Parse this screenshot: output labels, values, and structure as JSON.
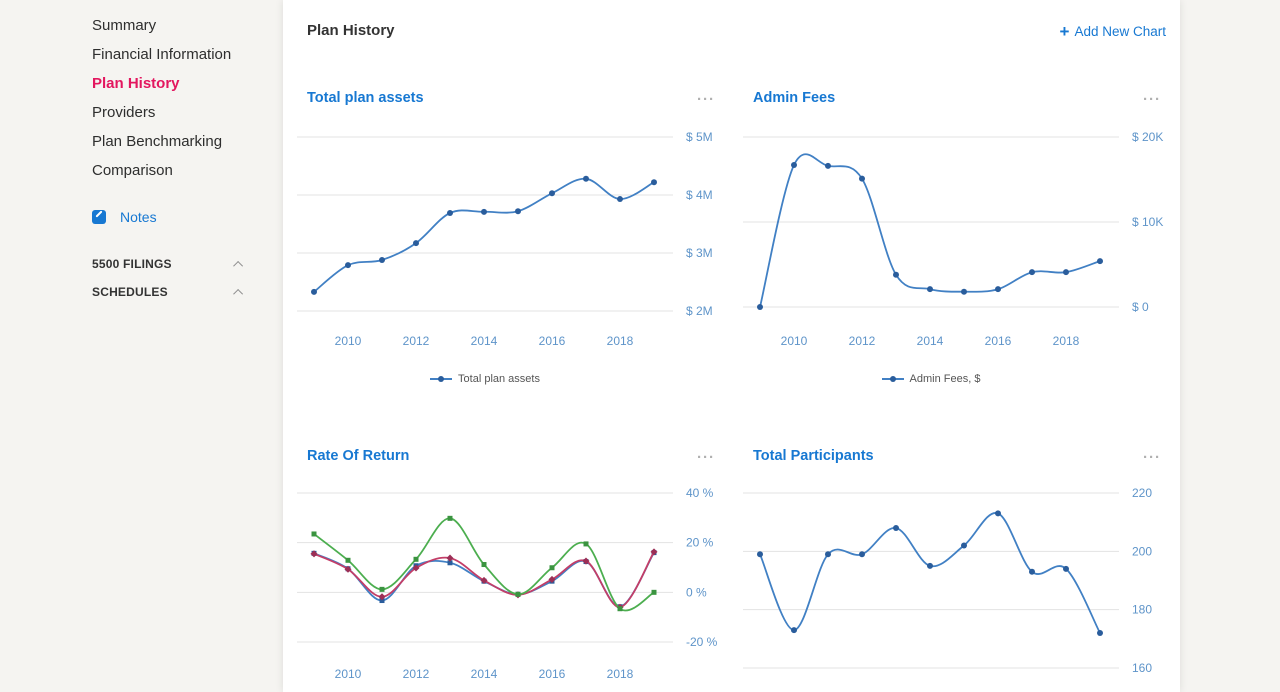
{
  "sidebar": {
    "items": [
      {
        "label": "Summary",
        "active": false
      },
      {
        "label": "Financial Information",
        "active": false
      },
      {
        "label": "Plan History",
        "active": true
      },
      {
        "label": "Providers",
        "active": false
      },
      {
        "label": "Plan Benchmarking",
        "active": false
      },
      {
        "label": "Comparison",
        "active": false
      }
    ],
    "notes_label": "Notes",
    "sections": [
      {
        "label": "5500 FILINGS",
        "chevron": "up"
      },
      {
        "label": "SCHEDULES",
        "chevron": "up"
      }
    ]
  },
  "header": {
    "title": "Plan History",
    "add_chart_label": "Add New Chart"
  },
  "colors": {
    "accent_blue": "#1778d2",
    "active_item_pink": "#e3175f",
    "axis_label_blue": "#5e94c9",
    "gridline": "#e3e3e3",
    "sidebar_bg": "#f5f4f1",
    "line_blue": "#4180c4",
    "marker_blue": "#2a5d9c",
    "line_green": "#4cae4f",
    "marker_green": "#3b9440",
    "line_pink": "#c33e68",
    "marker_pink": "#9c2f56"
  },
  "chart_data": [
    {
      "type": "line",
      "title": "Total plan assets",
      "x": [
        2009,
        2010,
        2011,
        2012,
        2013,
        2014,
        2015,
        2016,
        2017,
        2018,
        2019
      ],
      "xticks": [
        "2010",
        "2012",
        "2014",
        "2016",
        "2018"
      ],
      "xticks_visible": true,
      "yticks": [
        {
          "label": "$ 5M",
          "value": 5000000
        },
        {
          "label": "$ 4M",
          "value": 4000000
        },
        {
          "label": "$ 3M",
          "value": 3000000
        },
        {
          "label": "$ 2M",
          "value": 2000000
        }
      ],
      "grid": true,
      "series": [
        {
          "color": "#4180c4",
          "marker_color": "#2a5d9c",
          "marker": "circle",
          "values": [
            2330000,
            2790000,
            2880000,
            3170000,
            3690000,
            3710000,
            3720000,
            4030000,
            4280000,
            3930000,
            4220000
          ]
        }
      ],
      "legend": {
        "visible": true,
        "position": "bottom",
        "label": "Total plan assets"
      }
    },
    {
      "type": "line",
      "title": "Admin Fees",
      "x": [
        2009,
        2010,
        2011,
        2012,
        2013,
        2014,
        2015,
        2016,
        2017,
        2018,
        2019
      ],
      "xticks": [
        "2010",
        "2012",
        "2014",
        "2016",
        "2018"
      ],
      "xticks_visible": true,
      "yticks": [
        {
          "label": "$ 20K",
          "value": 20000
        },
        {
          "label": "$ 10K",
          "value": 10000
        },
        {
          "label": "$ 0",
          "value": 0
        }
      ],
      "grid": true,
      "series": [
        {
          "color": "#4180c4",
          "marker_color": "#2a5d9c",
          "marker": "circle",
          "values": [
            0,
            16700,
            16600,
            15100,
            3800,
            2100,
            1800,
            2100,
            4100,
            4100,
            5400
          ]
        }
      ],
      "legend": {
        "visible": true,
        "position": "bottom",
        "label": "Admin Fees, $"
      }
    },
    {
      "type": "line",
      "title": "Rate Of Return",
      "x": [
        2009,
        2010,
        2011,
        2012,
        2013,
        2014,
        2015,
        2016,
        2017,
        2018,
        2019
      ],
      "xticks": [
        "2010",
        "2012",
        "2014",
        "2016",
        "2018"
      ],
      "xticks_visible": true,
      "yticks": [
        {
          "label": "40 %",
          "value": 40
        },
        {
          "label": "20 %",
          "value": 20
        },
        {
          "label": "0 %",
          "value": 0
        },
        {
          "label": "-20 %",
          "value": -20
        }
      ],
      "grid": true,
      "series": [
        {
          "color": "#4180c4",
          "marker_color": "#2a5d9c",
          "marker": "square",
          "values": [
            15.7,
            9.5,
            -3.3,
            10.7,
            11.9,
            4.5,
            -0.8,
            4.5,
            12.4,
            -5.8,
            16.0
          ]
        },
        {
          "color": "#c33e68",
          "marker_color": "#9c2f56",
          "marker": "diamond",
          "values": [
            15.5,
            9.3,
            -1.8,
            9.8,
            13.8,
            4.8,
            -1.0,
            5.2,
            12.6,
            -6.0,
            16.3
          ]
        },
        {
          "color": "#4cae4f",
          "marker_color": "#3b9440",
          "marker": "square",
          "values": [
            23.5,
            12.9,
            1.2,
            13.3,
            29.8,
            11.2,
            -0.8,
            9.9,
            19.5,
            -6.6,
            0.0
          ]
        }
      ],
      "legend": {
        "visible": false
      }
    },
    {
      "type": "line",
      "title": "Total Participants",
      "x": [
        2009,
        2010,
        2011,
        2012,
        2013,
        2014,
        2015,
        2016,
        2017,
        2018,
        2019
      ],
      "xticks": [],
      "xticks_visible": false,
      "yticks": [
        {
          "label": "220",
          "value": 220
        },
        {
          "label": "200",
          "value": 200
        },
        {
          "label": "180",
          "value": 180
        },
        {
          "label": "160",
          "value": 160
        }
      ],
      "grid": true,
      "series": [
        {
          "color": "#4180c4",
          "marker_color": "#2a5d9c",
          "marker": "circle",
          "values": [
            199,
            173,
            199,
            199,
            208,
            195,
            202,
            213,
            193,
            194,
            172
          ]
        }
      ],
      "legend": {
        "visible": false
      }
    }
  ]
}
